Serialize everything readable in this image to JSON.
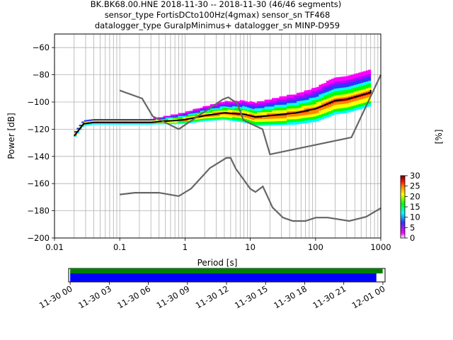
{
  "title_lines": [
    "BK.BK68.00.HNE   2018-11-30 -- 2018-11-30  (46/46 segments)",
    "sensor_type FortisDCto100Hz(4gmax) sensor_sn TF468",
    "datalogger_type GuralpMinimus+ datalogger_sn MINP-D959"
  ],
  "chart_data": [
    {
      "type": "heatmap",
      "title": "BK.BK68.00.HNE   2018-11-30 -- 2018-11-30  (46/46 segments)",
      "xlabel": "Period [s]",
      "ylabel": "Power [dB]",
      "xscale": "log",
      "xlim": [
        0.01,
        1000
      ],
      "ylim": [
        -200,
        -50
      ],
      "xticks": [
        0.01,
        0.1,
        1,
        10,
        100,
        1000
      ],
      "xtick_labels": [
        "0.01",
        "0.1",
        "1",
        "10",
        "100",
        "1000"
      ],
      "yticks": [
        -200,
        -180,
        -160,
        -140,
        -120,
        -100,
        -80,
        -60
      ],
      "ytick_labels": [
        "−200",
        "−180",
        "−160",
        "−140",
        "−120",
        "−100",
        "−80",
        "−60"
      ],
      "grid": true,
      "colorbar": {
        "label": "[%]",
        "range": [
          0,
          30
        ],
        "ticks": [
          0,
          5,
          10,
          15,
          20,
          25,
          30
        ],
        "tick_labels": [
          "0",
          "5",
          "10",
          "15",
          "20",
          "25",
          "30"
        ],
        "colors": [
          "#ffffff",
          "#ff00ff",
          "#3333ff",
          "#00ffff",
          "#00ff00",
          "#ffff00",
          "#ff8800",
          "#ff0000",
          "#660000"
        ]
      },
      "series": [
        {
          "role": "mean",
          "color": "#000000",
          "x": [
            0.02,
            0.028,
            0.04,
            0.1,
            0.3,
            1,
            2,
            4,
            8,
            12,
            20,
            50,
            100,
            200,
            300,
            500,
            700,
            700
          ],
          "y": [
            -125,
            -116,
            -115,
            -115,
            -115,
            -113,
            -110,
            -108,
            -109,
            -111,
            -110,
            -108,
            -105,
            -99,
            -98,
            -95,
            -93,
            -91
          ]
        },
        {
          "role": "high noise model",
          "color": "#666666",
          "x": [
            0.1,
            0.22,
            0.32,
            0.8,
            3.8,
            4.6,
            6.3,
            7.9,
            15.4,
            20,
            354.8,
            10000
          ],
          "y": [
            -91.5,
            -97.4,
            -110.5,
            -120,
            -98,
            -96.5,
            -101,
            -113.5,
            -120,
            -138.5,
            -126,
            -80
          ]
        },
        {
          "role": "low noise model",
          "color": "#666666",
          "x": [
            0.1,
            0.17,
            0.4,
            0.8,
            1.24,
            2.4,
            4.3,
            5,
            6,
            10,
            12,
            15.6,
            21.9,
            31.6,
            45,
            70,
            101,
            154,
            328,
            600,
            1000
          ],
          "y": [
            -168,
            -166.7,
            -166.7,
            -169.2,
            -163.7,
            -148.6,
            -141.1,
            -141.1,
            -149,
            -163.8,
            -166.2,
            -162.1,
            -177.5,
            -185,
            -187.5,
            -187.5,
            -185,
            -185,
            -187.5,
            -184.4,
            -178
          ]
        }
      ]
    },
    {
      "type": "bar",
      "xlabel": "",
      "xlim": [
        "2018-11-29 T23:53",
        "2018-12-01 T00:10"
      ],
      "xticks": [
        "2018-11-30 00:00",
        "2018-11-30 03:00",
        "2018-11-30 06:00",
        "2018-11-30 09:00",
        "2018-11-30 12:00",
        "2018-11-30 15:00",
        "2018-11-30 18:00",
        "2018-11-30 21:00",
        "2018-12-01 00:00"
      ],
      "xtick_labels": [
        "11-30 00",
        "11-30 03",
        "11-30 06",
        "11-30 09",
        "11-30 12",
        "11-30 15",
        "11-30 18",
        "11-30 21",
        "12-01 00"
      ],
      "series": [
        {
          "role": "data availability",
          "color": "#008000",
          "start": "2018-11-30 00:00",
          "end": "2018-11-30 23:59"
        },
        {
          "role": "PSD coverage",
          "color": "#0000ff",
          "start": "2018-11-30 00:00",
          "end": "2018-11-30 23:30"
        }
      ]
    }
  ]
}
